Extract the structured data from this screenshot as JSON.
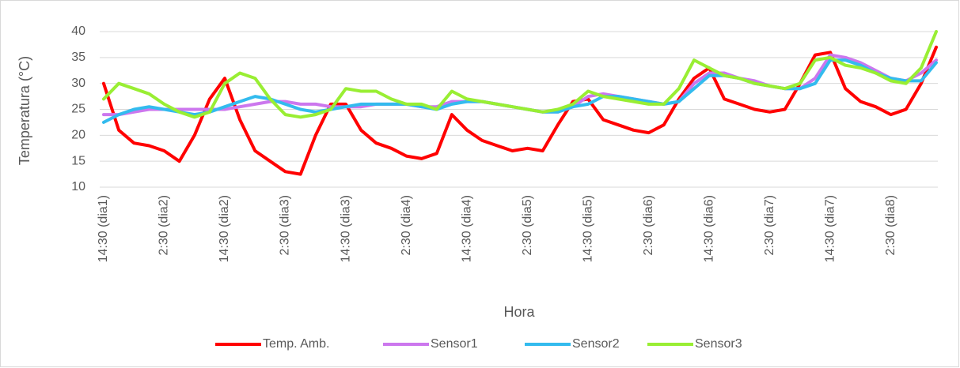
{
  "chart_data": {
    "type": "line",
    "xlabel": "Hora",
    "ylabel": "Temperatura (°C)",
    "categories": [
      "14:30 (dia1)",
      null,
      null,
      null,
      "2:30 (dia2)",
      null,
      null,
      null,
      "14:30 (dia2)",
      null,
      null,
      null,
      "2:30 (dia3)",
      null,
      null,
      null,
      "14:30 (dia3)",
      null,
      null,
      null,
      "2:30 (dia4)",
      null,
      null,
      null,
      "14:30 (dia4)",
      null,
      null,
      null,
      "2:30 (dia5)",
      null,
      null,
      null,
      "14:30 (dia5)",
      null,
      null,
      null,
      "2:30 (dia6)",
      null,
      null,
      null,
      "14:30 (dia6)",
      null,
      null,
      null,
      "2:30 (dia7)",
      null,
      null,
      null,
      "14:30 (dia7)",
      null,
      null,
      null,
      "2:30 (dia8)",
      null,
      null,
      null
    ],
    "ylim": [
      10,
      40
    ],
    "yticks": [
      10,
      15,
      20,
      25,
      30,
      35,
      40
    ],
    "grid": true,
    "legend": "bottom",
    "series": [
      {
        "name": "Temp. Amb.",
        "color": "#ff0000",
        "values": [
          30,
          21,
          18.5,
          18,
          17,
          15,
          20,
          27,
          31,
          23,
          17,
          15,
          13,
          12.5,
          20,
          26,
          26,
          21,
          18.5,
          17.5,
          16,
          15.5,
          16.5,
          24,
          21,
          19,
          18,
          17,
          17.5,
          17,
          22,
          26.5,
          27,
          23,
          22,
          21,
          20.5,
          22,
          27,
          31,
          33,
          27,
          26,
          25,
          24.5,
          25,
          30,
          35.5,
          36,
          29,
          26.5,
          25.5,
          24,
          25,
          30,
          37
        ]
      },
      {
        "name": "Sensor1",
        "color": "#cc77ee",
        "values": [
          24,
          24,
          24.5,
          25,
          25,
          25,
          25,
          25,
          25,
          25.5,
          26,
          26.5,
          26.5,
          26,
          26,
          25.5,
          25.5,
          25.5,
          26,
          26,
          26,
          25.5,
          25.5,
          26.5,
          26.5,
          26.5,
          26,
          25.5,
          25,
          24.5,
          24.5,
          25.5,
          27.5,
          28,
          27.5,
          27,
          26.5,
          26,
          26.5,
          30,
          32,
          32,
          31,
          30.5,
          29.5,
          29,
          29,
          31,
          35.5,
          35,
          34,
          32.5,
          31,
          30.5,
          32,
          34.5
        ]
      },
      {
        "name": "Sensor2",
        "color": "#33bbee",
        "values": [
          22.5,
          24,
          25,
          25.5,
          25,
          24.5,
          24,
          24.5,
          25.5,
          26.5,
          27.5,
          27,
          26,
          25,
          24.5,
          25,
          25.5,
          26,
          26,
          26,
          26,
          25.5,
          25,
          26,
          26.5,
          26.5,
          26,
          25.5,
          25,
          24.5,
          24.5,
          25.5,
          26,
          27.5,
          27.5,
          27,
          26.5,
          26,
          26.5,
          29,
          31.5,
          31.5,
          31,
          30,
          29.5,
          29,
          29,
          30,
          34.5,
          34.5,
          33.5,
          32,
          31,
          30.5,
          30.5,
          34
        ]
      },
      {
        "name": "Sensor3",
        "color": "#99ee33",
        "values": [
          27,
          30,
          29,
          28,
          26,
          24.5,
          23.5,
          24.5,
          30,
          32,
          31,
          27,
          24,
          23.5,
          24,
          25,
          29,
          28.5,
          28.5,
          27,
          26,
          26,
          25,
          28.5,
          27,
          26.5,
          26,
          25.5,
          25,
          24.5,
          25,
          26,
          28.5,
          27.5,
          27,
          26.5,
          26,
          26,
          29,
          34.5,
          33,
          31.5,
          31,
          30,
          29.5,
          29,
          30,
          34.5,
          35,
          33.5,
          33,
          32,
          30.5,
          30,
          33,
          40
        ]
      }
    ]
  }
}
